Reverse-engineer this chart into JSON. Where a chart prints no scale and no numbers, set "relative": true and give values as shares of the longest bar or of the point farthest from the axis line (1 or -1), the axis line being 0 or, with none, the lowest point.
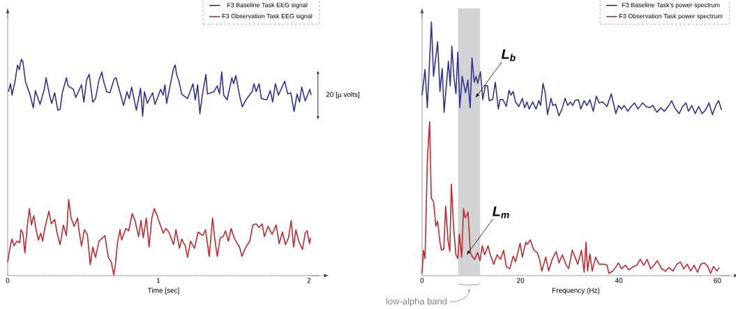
{
  "chart_data": [
    {
      "type": "line",
      "relative": true,
      "xlabel": "Time [sec]",
      "xlim": [
        0,
        2.07
      ],
      "xticks": [
        0,
        {
          "value": 0.25,
          "label": null
        },
        {
          "value": 0.5,
          "label": null
        },
        {
          "value": 0.75,
          "label": null
        },
        1,
        {
          "value": 1.25,
          "label": null
        },
        {
          "value": 1.5,
          "label": null
        },
        {
          "value": 1.75,
          "label": null
        },
        2
      ],
      "legend": "top right",
      "annotations": [
        "20 [µ volts]"
      ],
      "series": [
        {
          "name": "F3 Baseline Task EEG signal",
          "color": "#2e3192",
          "x": [
            0.005,
            0.019,
            0.029,
            0.049,
            0.065,
            0.077,
            0.091,
            0.101,
            0.119,
            0.147,
            0.17,
            0.184,
            0.215,
            0.243,
            0.255,
            0.278,
            0.292,
            0.312,
            0.333,
            0.348,
            0.363,
            0.39,
            0.401,
            0.436,
            0.452,
            0.49,
            0.506,
            0.524,
            0.541,
            0.565,
            0.583,
            0.606,
            0.625,
            0.637,
            0.657,
            0.679,
            0.707,
            0.719,
            0.738,
            0.769,
            0.792,
            0.807,
            0.823,
            0.854,
            0.882,
            0.896,
            0.908,
            0.927,
            0.962,
            0.978,
            1.016,
            1.032,
            1.044,
            1.055,
            1.086,
            1.101,
            1.112,
            1.121,
            1.137,
            1.155,
            1.194,
            1.23,
            1.245,
            1.261,
            1.276,
            1.292,
            1.316,
            1.326,
            1.369,
            1.391,
            1.406,
            1.421,
            1.434,
            1.457,
            1.488,
            1.5,
            1.514,
            1.542,
            1.558,
            1.581,
            1.623,
            1.635,
            1.65,
            1.669,
            1.684,
            1.72,
            1.743,
            1.759,
            1.777,
            1.797,
            1.839,
            1.859,
            1.879,
            1.901,
            1.921,
            1.937,
            1.952,
            1.975,
            2.006,
            2.014
          ],
          "values": [
            0.85,
            0.887,
            0.834,
            0.898,
            0.973,
            0.952,
            1.0,
            0.989,
            0.893,
            0.839,
            0.775,
            0.855,
            0.791,
            0.861,
            0.914,
            0.834,
            0.796,
            0.845,
            0.764,
            0.77,
            0.845,
            0.914,
            0.877,
            0.861,
            0.823,
            0.882,
            0.802,
            0.904,
            0.93,
            0.802,
            0.818,
            0.904,
            0.941,
            0.898,
            0.85,
            0.845,
            0.909,
            0.914,
            0.866,
            0.786,
            0.85,
            0.818,
            0.871,
            0.764,
            0.866,
            0.737,
            0.85,
            0.796,
            0.845,
            0.791,
            0.861,
            0.834,
            0.882,
            0.796,
            0.904,
            0.957,
            0.973,
            0.93,
            0.898,
            0.839,
            0.818,
            0.887,
            0.812,
            0.882,
            0.748,
            0.834,
            0.93,
            0.839,
            0.85,
            0.877,
            0.839,
            0.941,
            0.834,
            0.812,
            0.914,
            0.887,
            0.925,
            0.823,
            0.78,
            0.812,
            0.85,
            0.887,
            0.85,
            0.887,
            0.818,
            0.812,
            0.855,
            0.802,
            0.887,
            0.834,
            0.898,
            0.839,
            0.845,
            0.759,
            0.839,
            0.802,
            0.871,
            0.807,
            0.861,
            0.834
          ]
        },
        {
          "name": "F3 Observation Task EEG signal",
          "color": "#c1272d",
          "x": [
            0.0,
            0.011,
            0.019,
            0.029,
            0.042,
            0.06,
            0.08,
            0.088,
            0.101,
            0.114,
            0.131,
            0.144,
            0.158,
            0.173,
            0.189,
            0.204,
            0.22,
            0.232,
            0.246,
            0.274,
            0.289,
            0.312,
            0.328,
            0.348,
            0.37,
            0.39,
            0.405,
            0.421,
            0.441,
            0.464,
            0.475,
            0.49,
            0.509,
            0.529,
            0.548,
            0.565,
            0.583,
            0.606,
            0.63,
            0.645,
            0.668,
            0.688,
            0.704,
            0.715,
            0.73,
            0.746,
            0.756,
            0.784,
            0.803,
            0.827,
            0.845,
            0.869,
            0.885,
            0.9,
            0.92,
            0.939,
            0.957,
            0.973,
            0.993,
            1.008,
            1.032,
            1.05,
            1.07,
            1.101,
            1.117,
            1.14,
            1.155,
            1.179,
            1.194,
            1.214,
            1.24,
            1.264,
            1.295,
            1.313,
            1.338,
            1.36,
            1.375,
            1.391,
            1.411,
            1.431,
            1.446,
            1.465,
            1.483,
            1.503,
            1.524,
            1.539,
            1.555,
            1.581,
            1.607,
            1.627,
            1.65,
            1.669,
            1.689,
            1.704,
            1.728,
            1.755,
            1.782,
            1.802,
            1.824,
            1.844,
            1.864,
            1.882,
            1.898,
            1.913,
            1.932,
            1.957,
            1.975,
            1.988,
            2.003,
            2.011
          ],
          "values": [
            0.062,
            0.11,
            0.143,
            0.169,
            0.137,
            0.159,
            0.153,
            0.212,
            0.196,
            0.105,
            0.234,
            0.309,
            0.234,
            0.277,
            0.212,
            0.164,
            0.196,
            0.159,
            0.218,
            0.298,
            0.239,
            0.26,
            0.196,
            0.143,
            0.234,
            0.185,
            0.352,
            0.266,
            0.228,
            0.266,
            0.201,
            0.137,
            0.212,
            0.191,
            0.051,
            0.132,
            0.084,
            0.159,
            0.175,
            0.185,
            0.084,
            0.062,
            0.003,
            0.051,
            0.159,
            0.212,
            0.164,
            0.218,
            0.207,
            0.287,
            0.255,
            0.18,
            0.255,
            0.175,
            0.266,
            0.132,
            0.266,
            0.309,
            0.277,
            0.244,
            0.196,
            0.218,
            0.201,
            0.143,
            0.212,
            0.126,
            0.169,
            0.137,
            0.084,
            0.159,
            0.126,
            0.201,
            0.185,
            0.212,
            0.089,
            0.266,
            0.169,
            0.089,
            0.175,
            0.18,
            0.207,
            0.159,
            0.218,
            0.175,
            0.148,
            0.132,
            0.089,
            0.132,
            0.159,
            0.234,
            0.239,
            0.223,
            0.239,
            0.18,
            0.228,
            0.191,
            0.234,
            0.148,
            0.201,
            0.143,
            0.175,
            0.255,
            0.132,
            0.212,
            0.159,
            0.121,
            0.196,
            0.207,
            0.148,
            0.175
          ]
        }
      ]
    },
    {
      "type": "line",
      "relative": true,
      "xlabel": "Frequency (Hz)",
      "xlim": [
        0,
        62.5
      ],
      "xticks": [
        0,
        20,
        40,
        60
      ],
      "legend": "top right",
      "bands": [
        {
          "axis": "x",
          "from": 7.3,
          "to": 11.8,
          "label": "low-alpha band",
          "color": "#d1d3d4"
        }
      ],
      "annotations": [
        "L$_{b}$",
        "L$_{m}$"
      ],
      "series": [
        {
          "name": "F3 Baseline Task's power spectrum",
          "color": "#2e3192",
          "x": [
            0.0,
            0.6,
            1.07,
            1.9,
            2.33,
            3.16,
            3.63,
            4.09,
            4.47,
            5.35,
            5.72,
            6.05,
            6.51,
            6.88,
            7.26,
            7.67,
            8.14,
            8.84,
            9.3,
            9.77,
            10.14,
            10.6,
            10.98,
            11.3,
            11.86,
            12.33,
            12.84,
            13.3,
            13.63,
            14.33,
            14.88,
            15.49,
            15.86,
            16.42,
            17.12,
            17.67,
            18.05,
            18.51,
            18.98,
            19.67,
            20.37,
            20.84,
            21.3,
            21.77,
            22.47,
            23.16,
            23.72,
            24.09,
            24.56,
            25.02,
            25.49,
            26.19,
            26.56,
            27.12,
            27.81,
            28.42,
            29.07,
            29.58,
            30.14,
            30.6,
            31.07,
            31.77,
            32.23,
            32.93,
            33.49,
            34.09,
            34.79,
            35.4,
            35.95,
            36.65,
            37.58,
            38.42,
            38.98,
            39.35,
            39.91,
            40.51,
            41.07,
            41.77,
            42.47,
            43.16,
            43.86,
            44.79,
            45.49,
            46.19,
            46.88,
            47.72,
            48.51,
            49.21,
            50.14,
            50.7,
            51.3,
            52.23,
            52.93,
            53.63,
            54.09,
            54.79,
            55.49,
            56.19,
            56.88,
            57.58,
            58.28,
            58.98,
            59.67,
            60.23,
            60.84
          ],
          "values": [
            0.712,
            0.813,
            0.662,
            1.0,
            0.786,
            0.922,
            0.726,
            0.817,
            0.644,
            0.845,
            0.749,
            0.904,
            0.776,
            0.717,
            0.881,
            0.662,
            0.786,
            0.721,
            0.771,
            0.662,
            0.858,
            0.763,
            0.786,
            0.758,
            0.804,
            0.694,
            0.749,
            0.749,
            0.69,
            0.694,
            0.763,
            0.657,
            0.694,
            0.694,
            0.667,
            0.731,
            0.712,
            0.726,
            0.685,
            0.667,
            0.699,
            0.662,
            0.685,
            0.657,
            0.685,
            0.657,
            0.69,
            0.671,
            0.758,
            0.721,
            0.635,
            0.699,
            0.671,
            0.676,
            0.63,
            0.657,
            0.699,
            0.671,
            0.685,
            0.671,
            0.69,
            0.694,
            0.657,
            0.69,
            0.671,
            0.694,
            0.648,
            0.708,
            0.681,
            0.685,
            0.667,
            0.717,
            0.671,
            0.639,
            0.671,
            0.657,
            0.671,
            0.648,
            0.667,
            0.681,
            0.657,
            0.681,
            0.667,
            0.662,
            0.671,
            0.644,
            0.662,
            0.648,
            0.671,
            0.69,
            0.662,
            0.639,
            0.667,
            0.681,
            0.648,
            0.671,
            0.639,
            0.667,
            0.639,
            0.653,
            0.681,
            0.635,
            0.671,
            0.69,
            0.653
          ]
        },
        {
          "name": "F3 Observation Task power spectrum",
          "color": "#c1272d",
          "x": [
            0.0,
            0.28,
            0.6,
            1.07,
            1.53,
            1.86,
            2.33,
            2.79,
            3.16,
            3.63,
            3.95,
            4.42,
            4.79,
            5.26,
            5.63,
            5.95,
            6.42,
            6.88,
            7.26,
            7.58,
            8.05,
            8.42,
            8.74,
            9.07,
            9.35,
            9.81,
            10.28,
            10.7,
            11.3,
            11.77,
            12.23,
            12.7,
            13.4,
            13.86,
            14.56,
            15.26,
            15.95,
            16.56,
            17.12,
            17.81,
            18.51,
            18.98,
            19.91,
            20.37,
            21.07,
            21.4,
            22.0,
            22.7,
            23.4,
            23.86,
            24.33,
            25.12,
            25.72,
            26.42,
            27.26,
            27.81,
            28.51,
            29.21,
            29.77,
            30.51,
            31.07,
            31.63,
            32.37,
            32.93,
            33.3,
            33.63,
            34.09,
            34.56,
            35.26,
            35.95,
            36.88,
            37.58,
            37.95,
            38.74,
            39.44,
            39.91,
            40.51,
            41.3,
            42.0,
            42.93,
            43.63,
            44.33,
            45.02,
            45.72,
            46.42,
            47.12,
            47.81,
            48.65,
            49.44,
            50.14,
            50.98,
            51.77,
            52.47,
            53.16,
            53.86,
            54.56,
            55.26,
            55.95,
            56.65,
            57.35,
            58.05,
            58.6,
            59.21,
            59.91,
            60.37
          ],
          "values": [
            0.009,
            0.1,
            0.068,
            0.456,
            0.607,
            0.306,
            0.292,
            0.196,
            0.214,
            0.132,
            0.1,
            0.105,
            0.274,
            0.141,
            0.095,
            0.36,
            0.187,
            0.082,
            0.068,
            0.164,
            0.073,
            0.265,
            0.228,
            0.237,
            0.251,
            0.091,
            0.073,
            0.064,
            0.091,
            0.059,
            0.118,
            0.082,
            0.118,
            0.082,
            0.045,
            0.082,
            0.064,
            0.1,
            0.036,
            0.027,
            0.077,
            0.054,
            0.128,
            0.073,
            0.132,
            0.123,
            0.141,
            0.1,
            0.091,
            0.064,
            0.018,
            0.073,
            0.018,
            0.064,
            0.095,
            0.05,
            0.082,
            0.045,
            0.027,
            0.1,
            0.073,
            0.045,
            0.1,
            0.013,
            0.132,
            0.018,
            0.086,
            0.018,
            0.073,
            0.045,
            0.045,
            0.041,
            0.009,
            0.018,
            0.036,
            0.05,
            0.027,
            0.041,
            0.022,
            0.036,
            0.041,
            0.064,
            0.041,
            0.064,
            0.027,
            0.041,
            0.059,
            0.027,
            0.018,
            0.032,
            0.018,
            0.045,
            0.054,
            0.027,
            0.045,
            0.018,
            0.041,
            0.013,
            0.045,
            0.05,
            0.036,
            0.009,
            0.036,
            0.018,
            0.032
          ]
        }
      ]
    }
  ]
}
